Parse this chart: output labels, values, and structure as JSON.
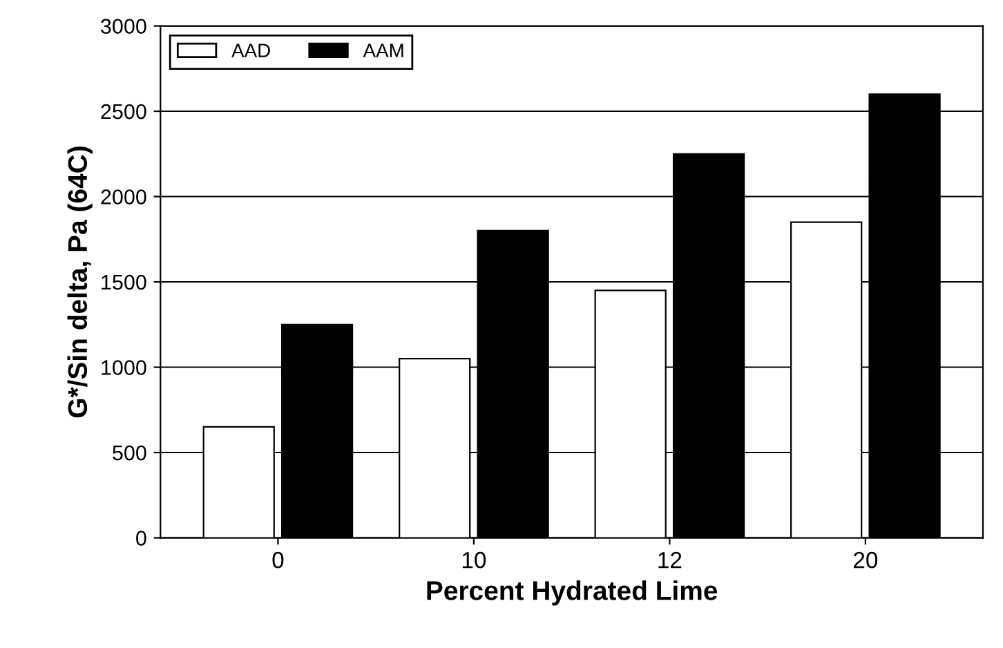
{
  "chart_data": {
    "type": "bar",
    "xlabel": "Percent Hydrated Lime",
    "ylabel": "G*/Sin delta, Pa (64C)",
    "categories": [
      "0",
      "10",
      "12",
      "20"
    ],
    "series": [
      {
        "name": "AAD",
        "color": "#ffffff",
        "values": [
          650,
          1050,
          1450,
          1850
        ]
      },
      {
        "name": "AAM",
        "color": "#000000",
        "values": [
          1250,
          1800,
          2250,
          2600
        ]
      }
    ],
    "ylim": [
      0,
      3000
    ],
    "yticks": [
      0,
      500,
      1000,
      1500,
      2000,
      2500,
      3000
    ],
    "grid": "y",
    "legend": "top left"
  }
}
